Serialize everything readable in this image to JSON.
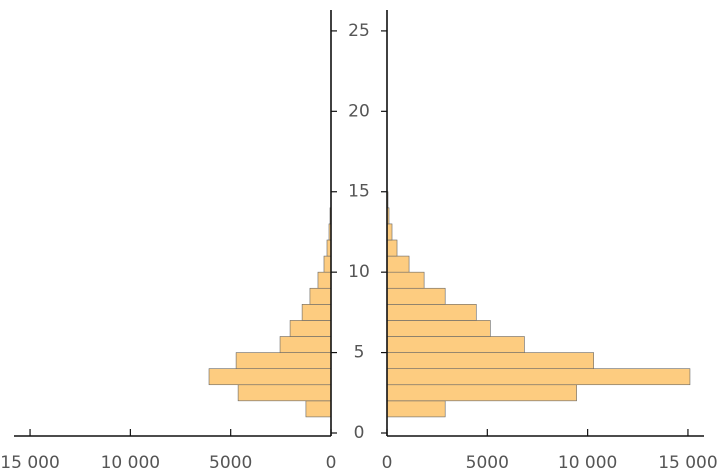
{
  "chart_data": {
    "type": "histogram",
    "bins": [
      1,
      2,
      3,
      4,
      5,
      6,
      7,
      8,
      9,
      10,
      11,
      12,
      13,
      14,
      15
    ],
    "series": [
      {
        "color": "#fdcc80",
        "values": [
          1250,
          4630,
          6080,
          4730,
          2540,
          2040,
          1440,
          1050,
          650,
          350,
          200,
          100,
          50,
          0
        ]
      },
      {
        "color": "#fdcc80",
        "values": [
          2900,
          9450,
          15100,
          10300,
          6850,
          5150,
          4450,
          2900,
          1850,
          1100,
          500,
          250,
          100,
          50
        ]
      }
    ],
    "xlim": [
      0,
      15800
    ],
    "xticks": [
      0,
      5000,
      {
        "value": 10000,
        "label": "10 000"
      },
      {
        "value": 15000,
        "label": "15 000"
      }
    ],
    "ylim": [
      0,
      26.3
    ],
    "yticks": [
      0,
      5,
      10,
      15,
      20,
      25
    ]
  }
}
